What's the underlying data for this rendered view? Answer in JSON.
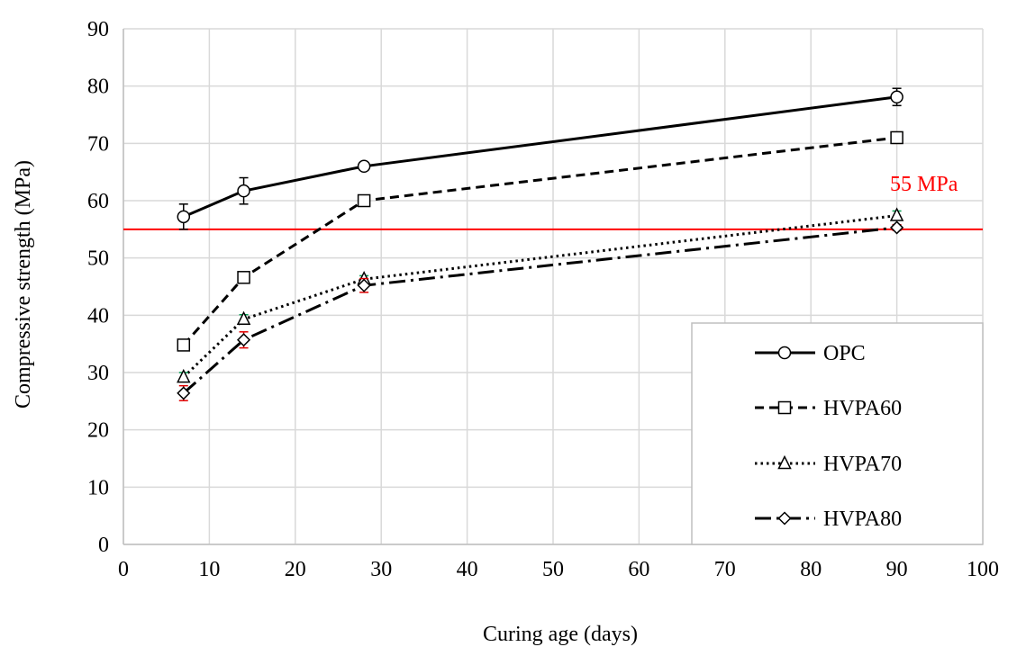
{
  "chart_data": {
    "type": "line",
    "title": "",
    "xlabel": "Curing age (days)",
    "ylabel": "Compressive strength (MPa)",
    "xlim": [
      0,
      100
    ],
    "ylim": [
      0,
      90
    ],
    "xticks": [
      0,
      10,
      20,
      30,
      40,
      50,
      60,
      70,
      80,
      90,
      100
    ],
    "yticks": [
      0,
      10,
      20,
      30,
      40,
      50,
      60,
      70,
      80,
      90
    ],
    "grid": true,
    "legend_position": "bottom-right",
    "x": [
      7,
      14,
      28,
      90
    ],
    "series": [
      {
        "name": "OPC",
        "values": [
          57.2,
          61.7,
          66.0,
          78.1
        ],
        "error": [
          2.2,
          2.3,
          0.5,
          1.5
        ],
        "marker": "circle",
        "line_style": "solid",
        "color": "#000000",
        "error_color": "#000000"
      },
      {
        "name": "HVPA60",
        "values": [
          34.8,
          46.6,
          60.0,
          71.0
        ],
        "error": [
          0.8,
          0.8,
          0.6,
          1.0
        ],
        "marker": "square",
        "line_style": "dashed",
        "color": "#000000",
        "error_color": "#e69138"
      },
      {
        "name": "HVPA70",
        "values": [
          29.2,
          39.3,
          46.3,
          57.4
        ],
        "error": [
          0.8,
          0.8,
          0.6,
          0.8
        ],
        "marker": "triangle",
        "line_style": "dotted",
        "color": "#000000",
        "error_color": "#00a050"
      },
      {
        "name": "HVPA80",
        "values": [
          26.4,
          35.7,
          45.2,
          55.3
        ],
        "error": [
          1.3,
          1.4,
          1.2,
          0.5
        ],
        "marker": "diamond",
        "line_style": "dash-dot",
        "color": "#000000",
        "error_color": "#e00000"
      }
    ],
    "reference_line": {
      "y": 55,
      "label": "55 MPa",
      "color": "#ff0000"
    }
  }
}
